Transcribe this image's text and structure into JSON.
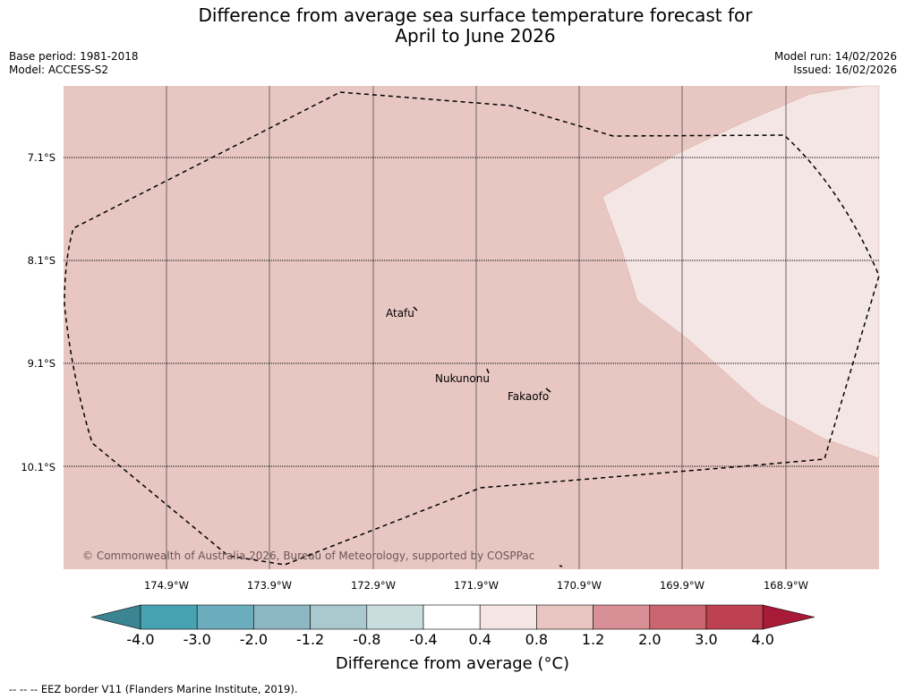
{
  "header": {
    "title_line1": "Difference from average sea surface temperature forecast for",
    "title_line2": "April to June 2026",
    "base_period": "Base period: 1981-2018",
    "model": "Model: ACCESS-S2",
    "model_run": "Model run: 14/02/2026",
    "issued": "Issued: 16/02/2026"
  },
  "map": {
    "latitude_labels": [
      "7.1°S",
      "8.1°S",
      "9.1°S",
      "10.1°S"
    ],
    "longitude_labels": [
      "174.9°W",
      "173.9°W",
      "172.9°W",
      "171.9°W",
      "170.9°W",
      "169.9°W",
      "168.9°W"
    ],
    "places": [
      "Atafu",
      "Nukunonu",
      "Fakaofo"
    ],
    "copyright": "© Commonwealth of Australia 2026, Bureau of Meteorology, supported by COSPPac",
    "colors": {
      "background_anomaly": "#e8c7c2",
      "light_anomaly": "#f4e6e4",
      "gridline": "#6e6464"
    }
  },
  "colorbar": {
    "ticks": [
      "-4.0",
      "-3.0",
      "-2.0",
      "-1.2",
      "-0.8",
      "-0.4",
      "0.4",
      "0.8",
      "1.2",
      "2.0",
      "3.0",
      "4.0"
    ],
    "colors": [
      "#3a8591",
      "#47a2b2",
      "#6badbd",
      "#8db8c3",
      "#aac9ce",
      "#c9dcde",
      "#ffffff",
      "#f5e6e5",
      "#e8c5c1",
      "#d88f96",
      "#cb6570",
      "#bd4150",
      "#a91a38"
    ],
    "label": "Difference from average (°C)"
  },
  "footer": {
    "eez_note": "--  --  -- EEZ border V11 (Flanders Marine Institute, 2019)."
  }
}
